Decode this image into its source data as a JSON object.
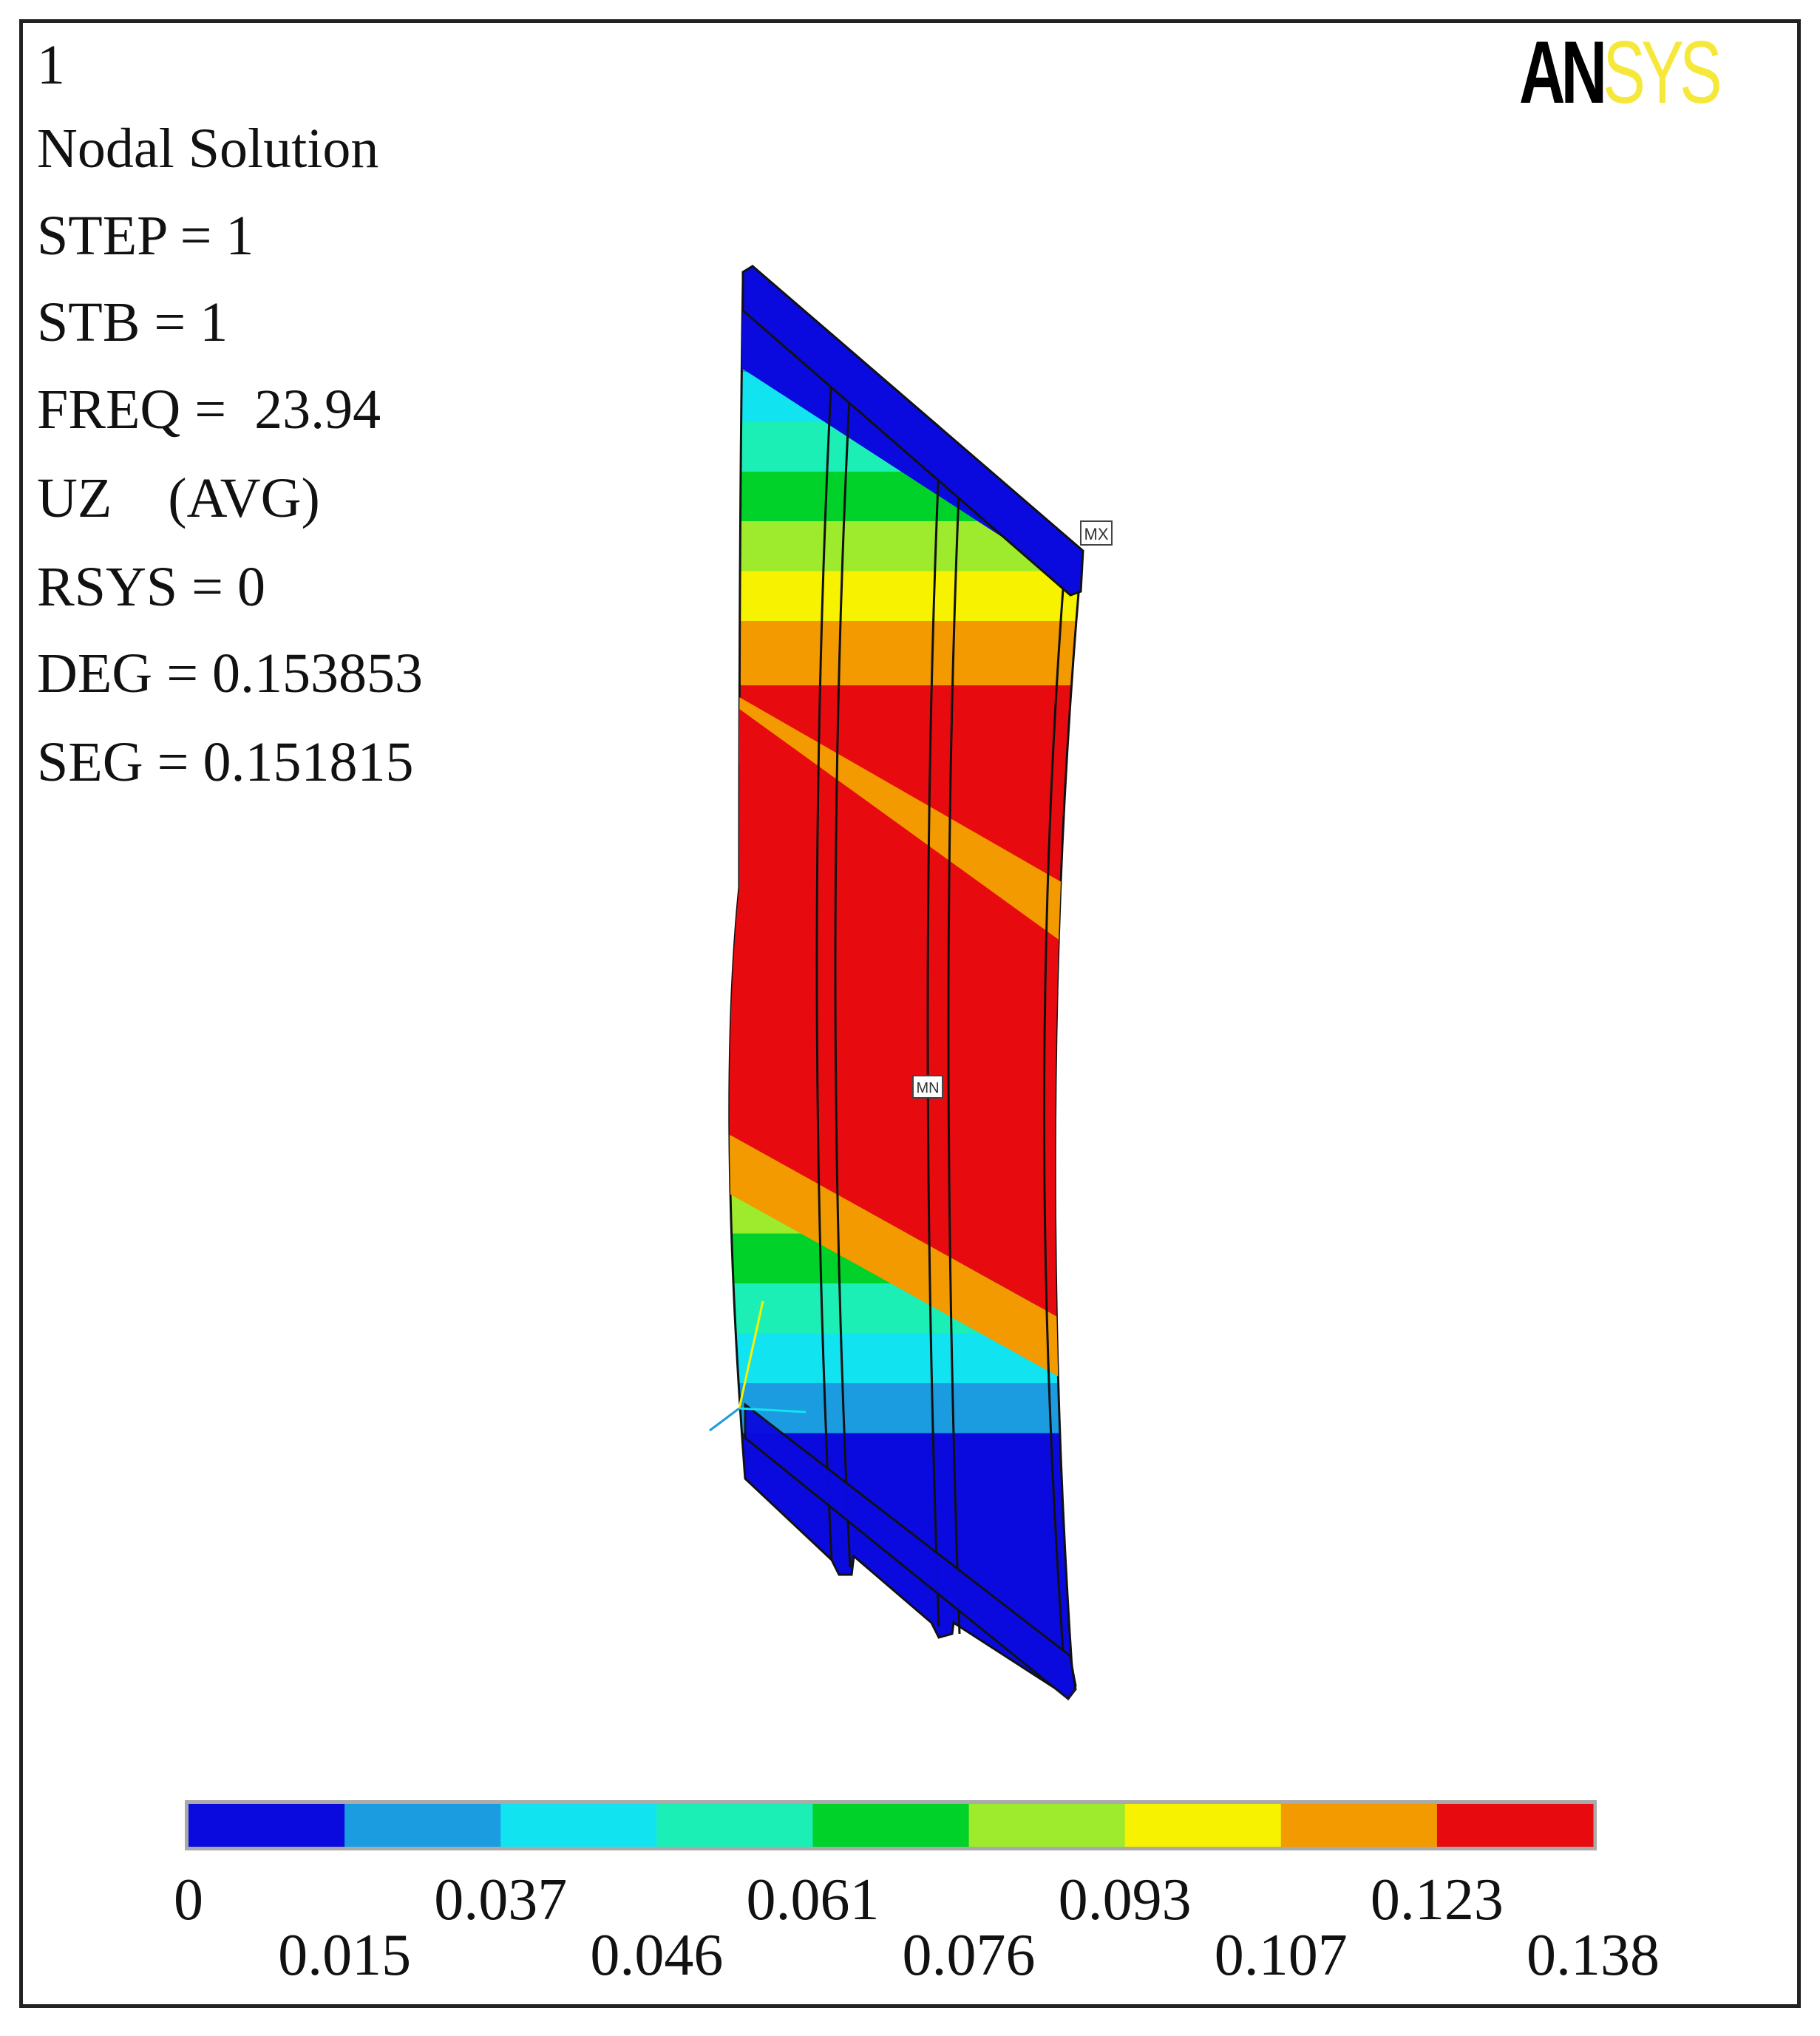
{
  "info": {
    "lines": [
      "1",
      "Nodal Solution",
      "STEP = 1",
      "STB = 1",
      "FREQ =  23.94",
      "UZ    (AVG)",
      "RSYS = 0",
      "DEG = 0.153853",
      "SEG = 0.151815"
    ]
  },
  "logo": {
    "part1": "AN",
    "part2": "SYS"
  },
  "model": {
    "annotations": {
      "max_marker": "MX",
      "min_marker": "MN"
    }
  },
  "legend": {
    "colors": [
      "#0a0adf",
      "#1c9ce0",
      "#12e3f0",
      "#1cefb6",
      "#00d22a",
      "#9eea2c",
      "#f6f200",
      "#f29a00",
      "#e70b10"
    ],
    "labels": [
      "0",
      "0.015",
      "0.037",
      "0.046",
      "0.061",
      "0.076",
      "0.093",
      "0.107",
      "0.123",
      "0.138"
    ]
  }
}
